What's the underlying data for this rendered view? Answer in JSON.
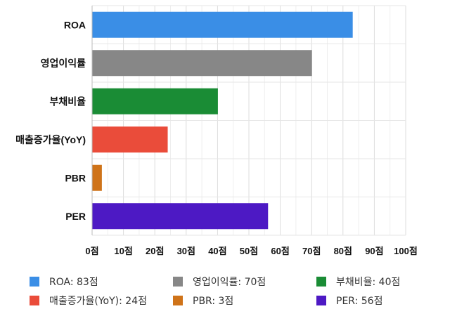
{
  "chart_data": {
    "type": "bar",
    "orientation": "horizontal",
    "categories": [
      "ROA",
      "영업이익률",
      "부채비율",
      "매출증가율(YoY)",
      "PBR",
      "PER"
    ],
    "values": [
      83,
      70,
      40,
      24,
      3,
      56
    ],
    "colors": [
      "#3a8ee6",
      "#878787",
      "#1a8c35",
      "#ea4c3a",
      "#cf7319",
      "#4d19c4"
    ],
    "x_ticks": [
      "0점",
      "10점",
      "20점",
      "30점",
      "40점",
      "50점",
      "60점",
      "70점",
      "80점",
      "90점",
      "100점"
    ],
    "xlim": [
      0,
      100
    ],
    "grid": true,
    "legend_position": "bottom",
    "legend": [
      {
        "label": "ROA: 83점",
        "color": "#3a8ee6"
      },
      {
        "label": "영업이익률: 70점",
        "color": "#878787"
      },
      {
        "label": "부채비율: 40점",
        "color": "#1a8c35"
      },
      {
        "label": "매출증가율(YoY): 24점",
        "color": "#ea4c3a"
      },
      {
        "label": "PBR: 3점",
        "color": "#cf7319"
      },
      {
        "label": "PER: 56점",
        "color": "#4d19c4"
      }
    ]
  }
}
